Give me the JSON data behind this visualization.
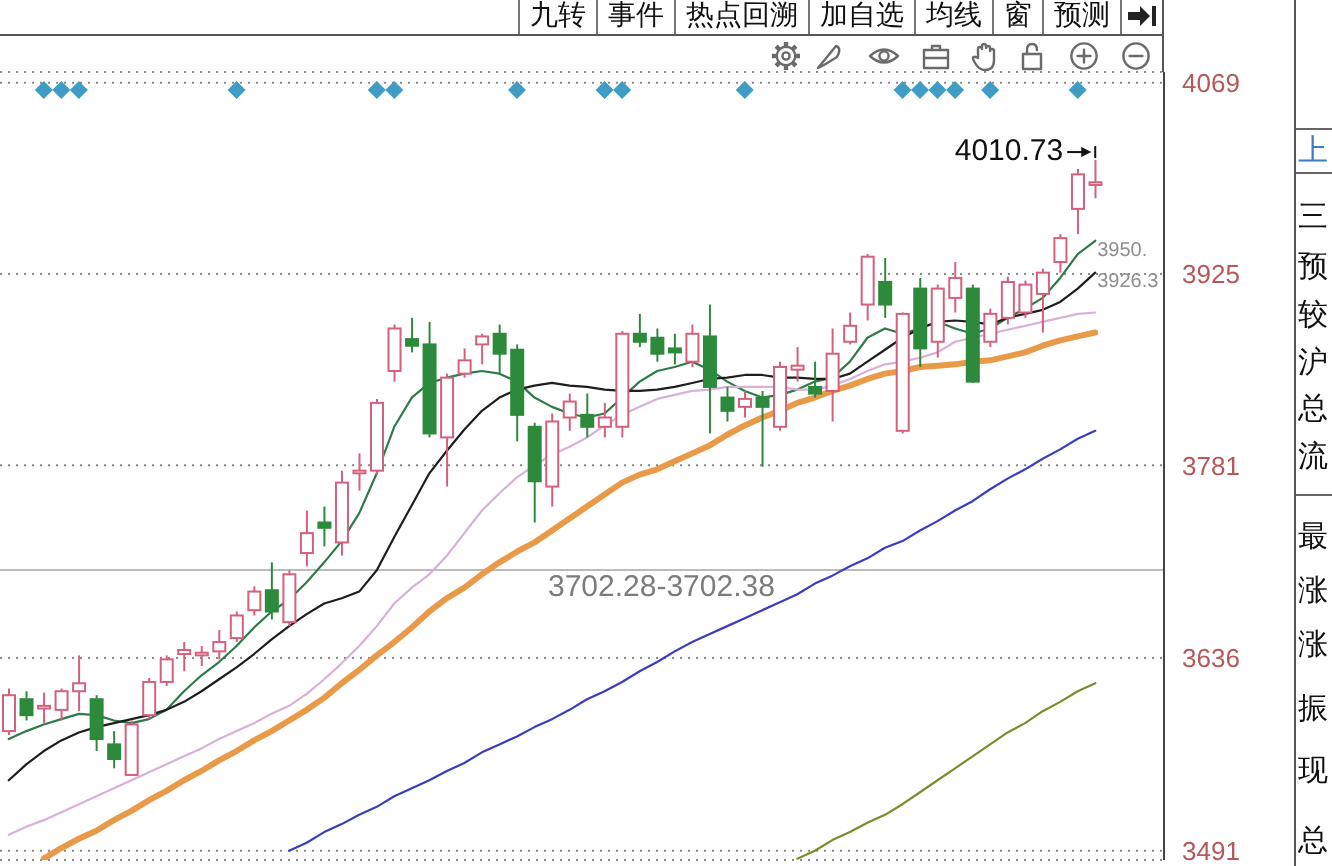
{
  "chart_data": {
    "type": "candlestick",
    "categories": [
      null,
      null,
      null,
      null,
      null,
      null,
      null,
      null,
      null,
      null,
      null,
      null,
      null,
      null,
      null,
      null,
      null,
      null,
      null,
      null,
      null,
      null,
      null,
      null,
      null,
      null,
      null,
      null,
      null,
      null,
      null,
      null,
      null,
      null,
      null,
      null,
      null,
      null,
      null,
      null,
      null,
      null,
      null,
      null,
      null,
      null,
      null,
      null,
      null,
      null,
      null,
      null,
      null,
      null,
      null,
      null,
      null,
      null,
      null,
      null,
      null,
      null,
      null
    ],
    "ohlc": [
      [
        3581,
        3613,
        3578,
        3608
      ],
      [
        3605,
        3611,
        3589,
        3593
      ],
      [
        3598,
        3610,
        3586,
        3600
      ],
      [
        3597,
        3613,
        3589,
        3611
      ],
      [
        3611,
        3638,
        3596,
        3617
      ],
      [
        3605,
        3608,
        3566,
        3575
      ],
      [
        3571,
        3581,
        3553,
        3560
      ],
      [
        3548,
        3589,
        3548,
        3586
      ],
      [
        3593,
        3621,
        3590,
        3618
      ],
      [
        3618,
        3638,
        3615,
        3635
      ],
      [
        3639,
        3648,
        3626,
        3642
      ],
      [
        3638,
        3645,
        3630,
        3640
      ],
      [
        3641,
        3657,
        3635,
        3648
      ],
      [
        3651,
        3671,
        3648,
        3668
      ],
      [
        3672,
        3690,
        3668,
        3686
      ],
      [
        3687,
        3708,
        3665,
        3671
      ],
      [
        3663,
        3702,
        3660,
        3699
      ],
      [
        3715,
        3747,
        3705,
        3730
      ],
      [
        3738,
        3750,
        3720,
        3734
      ],
      [
        3723,
        3777,
        3713,
        3768
      ],
      [
        3775,
        3790,
        3762,
        3777
      ],
      [
        3777,
        3831,
        3774,
        3828
      ],
      [
        3852,
        3887,
        3844,
        3884
      ],
      [
        3876,
        3892,
        3866,
        3871
      ],
      [
        3872,
        3889,
        3802,
        3805
      ],
      [
        3802,
        3850,
        3765,
        3847
      ],
      [
        3850,
        3869,
        3847,
        3860
      ],
      [
        3872,
        3880,
        3857,
        3878
      ],
      [
        3880,
        3887,
        3850,
        3865
      ],
      [
        3868,
        3872,
        3799,
        3819
      ],
      [
        3810,
        3813,
        3738,
        3769
      ],
      [
        3765,
        3820,
        3750,
        3814
      ],
      [
        3817,
        3835,
        3807,
        3829
      ],
      [
        3819,
        3835,
        3802,
        3810
      ],
      [
        3810,
        3828,
        3802,
        3817
      ],
      [
        3810,
        3882,
        3802,
        3880
      ],
      [
        3880,
        3895,
        3870,
        3874
      ],
      [
        3877,
        3884,
        3859,
        3865
      ],
      [
        3869,
        3880,
        3857,
        3866
      ],
      [
        3859,
        3887,
        3855,
        3880
      ],
      [
        3878,
        3902,
        3805,
        3840
      ],
      [
        3832,
        3840,
        3814,
        3822
      ],
      [
        3825,
        3837,
        3817,
        3831
      ],
      [
        3832,
        3837,
        3780,
        3825
      ],
      [
        3810,
        3859,
        3807,
        3855
      ],
      [
        3853,
        3870,
        3844,
        3856
      ],
      [
        3840,
        3859,
        3832,
        3835
      ],
      [
        3837,
        3884,
        3814,
        3865
      ],
      [
        3874,
        3896,
        3872,
        3886
      ],
      [
        3902,
        3940,
        3890,
        3938
      ],
      [
        3919,
        3937,
        3892,
        3902
      ],
      [
        3807,
        3896,
        3805,
        3895
      ],
      [
        3914,
        3922,
        3855,
        3869
      ],
      [
        3874,
        3917,
        3862,
        3914
      ],
      [
        3907,
        3934,
        3896,
        3922
      ],
      [
        3914,
        3917,
        3843,
        3844
      ],
      [
        3874,
        3899,
        3870,
        3895
      ],
      [
        3892,
        3923,
        3887,
        3919
      ],
      [
        3896,
        3920,
        3892,
        3917
      ],
      [
        3910,
        3929,
        3881,
        3926
      ],
      [
        3934,
        3955,
        3926,
        3952
      ],
      [
        3974,
        4004,
        3955,
        4000
      ],
      [
        3992,
        4010.73,
        3982,
        3994
      ]
    ],
    "colors": [
      "#d4607c",
      "#2d8a3c",
      "#d4607c",
      "#d4607c",
      "#d4607c",
      "#2d8a3c",
      "#2d8a3c",
      "#d4607c",
      "#d4607c",
      "#d4607c",
      "#d4607c",
      "#d4607c",
      "#d4607c",
      "#d4607c",
      "#d4607c",
      "#2d8a3c",
      "#d4607c",
      "#d4607c",
      "#2d8a3c",
      "#d4607c",
      "#d4607c",
      "#d4607c",
      "#d4607c",
      "#2d8a3c",
      "#2d8a3c",
      "#d4607c",
      "#d4607c",
      "#d4607c",
      "#2d8a3c",
      "#2d8a3c",
      "#2d8a3c",
      "#d4607c",
      "#d4607c",
      "#2d8a3c",
      "#d4607c",
      "#d4607c",
      "#2d8a3c",
      "#2d8a3c",
      "#2d8a3c",
      "#d4607c",
      "#2d8a3c",
      "#2d8a3c",
      "#d4607c",
      "#2d8a3c",
      "#d4607c",
      "#d4607c",
      "#2d8a3c",
      "#d4607c",
      "#d4607c",
      "#d4607c",
      "#2d8a3c",
      "#d4607c",
      "#2d8a3c",
      "#d4607c",
      "#d4607c",
      "#2d8a3c",
      "#d4607c",
      "#d4607c",
      "#d4607c",
      "#d4607c",
      "#d4607c",
      "#d4607c",
      "#d4607c"
    ],
    "series": [
      {
        "type": "line",
        "color": "#2f7a4a",
        "values": [
          3575,
          3581,
          3586,
          3590,
          3594,
          3593,
          3589,
          3587,
          3590,
          3597,
          3611,
          3623,
          3633,
          3645,
          3659,
          3671,
          3680,
          3693,
          3708,
          3724,
          3745,
          3775,
          3810,
          3832,
          3843,
          3847,
          3850,
          3852,
          3850,
          3844,
          3832,
          3825,
          3820,
          3817,
          3820,
          3832,
          3844,
          3852,
          3855,
          3859,
          3853,
          3844,
          3837,
          3832,
          3834,
          3838,
          3844,
          3847,
          3859,
          3877,
          3884,
          3880,
          3884,
          3889,
          3884,
          3880,
          3884,
          3892,
          3899,
          3907,
          3922,
          3940,
          3950
        ]
      },
      {
        "type": "line",
        "color": "#1e1e1e",
        "values": [
          3544,
          3556,
          3566,
          3574,
          3580,
          3584,
          3587,
          3590,
          3593,
          3597,
          3603,
          3611,
          3620,
          3629,
          3639,
          3650,
          3660,
          3669,
          3677,
          3681,
          3686,
          3702,
          3727,
          3751,
          3775,
          3792,
          3808,
          3822,
          3832,
          3838,
          3841,
          3843,
          3841,
          3840,
          3838,
          3837,
          3837,
          3838,
          3840,
          3843,
          3846,
          3847,
          3849,
          3849,
          3847,
          3847,
          3846,
          3846,
          3850,
          3859,
          3868,
          3877,
          3884,
          3889,
          3890,
          3889,
          3887,
          3892,
          3895,
          3898,
          3904,
          3914,
          3926
        ]
      },
      {
        "type": "line",
        "color": "#d8b0d8",
        "values": [
          3503,
          3509,
          3514,
          3520,
          3526,
          3532,
          3538,
          3544,
          3550,
          3556,
          3562,
          3568,
          3575,
          3581,
          3587,
          3594,
          3600,
          3609,
          3620,
          3632,
          3645,
          3660,
          3677,
          3689,
          3699,
          3713,
          3730,
          3747,
          3760,
          3772,
          3781,
          3789,
          3795,
          3802,
          3811,
          3819,
          3825,
          3831,
          3834,
          3837,
          3838,
          3840,
          3840,
          3840,
          3840,
          3838,
          3838,
          3841,
          3846,
          3852,
          3857,
          3859,
          3862,
          3866,
          3874,
          3877,
          3880,
          3883,
          3886,
          3889,
          3892,
          3895,
          3896
        ]
      },
      {
        "type": "line",
        "color": "#e89a48",
        "values": [
          null,
          null,
          3485,
          3493,
          3500,
          3506,
          3514,
          3521,
          3529,
          3536,
          3544,
          3551,
          3559,
          3566,
          3574,
          3581,
          3589,
          3597,
          3606,
          3617,
          3627,
          3638,
          3648,
          3659,
          3671,
          3681,
          3689,
          3699,
          3708,
          3716,
          3723,
          3732,
          3741,
          3750,
          3759,
          3768,
          3774,
          3778,
          3784,
          3790,
          3796,
          3804,
          3811,
          3817,
          3822,
          3828,
          3832,
          3837,
          3841,
          3846,
          3850,
          3852,
          3855,
          3856,
          3857,
          3859,
          3860,
          3863,
          3866,
          3871,
          3875,
          3878,
          3881
        ]
      },
      {
        "type": "line",
        "color": "#3c3cc0",
        "values": [
          null,
          null,
          null,
          null,
          null,
          null,
          null,
          null,
          null,
          null,
          null,
          null,
          null,
          null,
          null,
          null,
          3491,
          3497,
          3505,
          3511,
          3518,
          3524,
          3532,
          3538,
          3544,
          3551,
          3557,
          3565,
          3571,
          3577,
          3584,
          3590,
          3597,
          3605,
          3611,
          3618,
          3626,
          3633,
          3641,
          3648,
          3654,
          3660,
          3666,
          3672,
          3678,
          3684,
          3692,
          3698,
          3705,
          3711,
          3719,
          3724,
          3732,
          3739,
          3747,
          3754,
          3763,
          3771,
          3778,
          3786,
          3793,
          3801,
          3807
        ]
      },
      {
        "type": "line",
        "color": "#7a8c2c",
        "values": [
          null,
          null,
          null,
          null,
          null,
          null,
          null,
          null,
          null,
          null,
          null,
          null,
          null,
          null,
          null,
          null,
          null,
          null,
          null,
          null,
          null,
          null,
          null,
          null,
          null,
          null,
          null,
          null,
          null,
          null,
          null,
          null,
          null,
          null,
          null,
          null,
          null,
          null,
          null,
          null,
          null,
          null,
          null,
          null,
          null,
          3485,
          3491,
          3499,
          3505,
          3512,
          3518,
          3526,
          3535,
          3544,
          3553,
          3562,
          3571,
          3580,
          3587,
          3596,
          3603,
          3611,
          3617
        ]
      }
    ],
    "ylim": [
      3484,
      4077
    ],
    "yticks": [
      4069,
      3925,
      3781,
      3636,
      3491
    ],
    "grid": "y",
    "tick_labels": "y",
    "ref_lines": [
      {
        "axis": "y",
        "value": 3702.28,
        "label": "3702.28-3702.38",
        "color": "#bbbbbb"
      }
    ],
    "annotations": [
      "九转",
      "事件",
      "热点回溯",
      "加自选",
      "均线",
      "窗",
      "预测",
      "上",
      "三",
      "预",
      "较",
      "沪",
      "总",
      "流",
      "最",
      "涨",
      "涨",
      "振",
      "现",
      "总",
      "4010.73",
      "3950.",
      "3926.3"
    ]
  }
}
